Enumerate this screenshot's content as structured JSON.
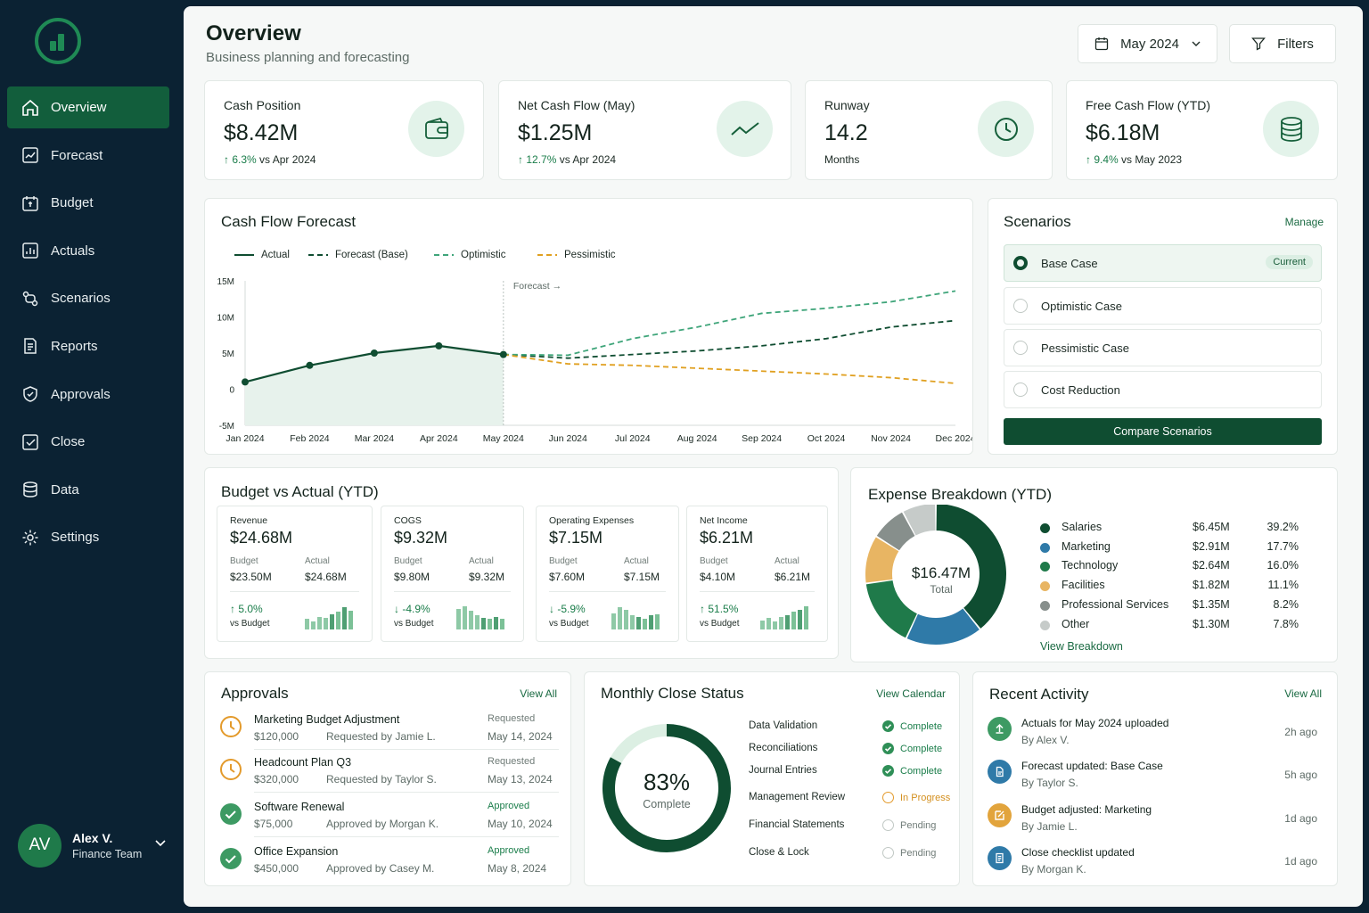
{
  "nav": {
    "items": [
      {
        "label": "Overview",
        "icon": "home-icon"
      },
      {
        "label": "Forecast",
        "icon": "forecast-icon"
      },
      {
        "label": "Budget",
        "icon": "budget-icon"
      },
      {
        "label": "Actuals",
        "icon": "actuals-icon"
      },
      {
        "label": "Scenarios",
        "icon": "scenarios-icon"
      },
      {
        "label": "Reports",
        "icon": "reports-icon"
      },
      {
        "label": "Approvals",
        "icon": "approvals-icon"
      },
      {
        "label": "Close",
        "icon": "close-check-icon"
      },
      {
        "label": "Data",
        "icon": "database-icon"
      },
      {
        "label": "Settings",
        "icon": "gear-icon"
      }
    ],
    "active": "Overview"
  },
  "user": {
    "initials": "AV",
    "name": "Alex V.",
    "team": "Finance Team"
  },
  "header": {
    "title": "Overview",
    "subtitle": "Business planning and forecasting",
    "period": "May 2024",
    "filters_label": "Filters"
  },
  "kpis": [
    {
      "label": "Cash Position",
      "value": "$8.42M",
      "delta": "6.3%",
      "delta_note": "vs Apr 2024",
      "icon": "wallet-icon"
    },
    {
      "label": "Net Cash Flow (May)",
      "value": "$1.25M",
      "delta": "12.7%",
      "delta_note": "vs Apr 2024",
      "icon": "trend-line-icon"
    },
    {
      "label": "Runway",
      "value": "14.2",
      "delta_note": "Months",
      "icon": "clock-icon"
    },
    {
      "label": "Free Cash Flow (YTD)",
      "value": "$6.18M",
      "delta": "9.4%",
      "delta_note": "vs May 2023",
      "icon": "coins-icon"
    }
  ],
  "cashflow": {
    "title": "Cash Flow Forecast",
    "forecast_marker": "Forecast",
    "legend": [
      "Actual",
      "Forecast (Base)",
      "Optimistic",
      "Pessimistic"
    ]
  },
  "chart_data": {
    "type": "line",
    "x": [
      "Jan 2024",
      "Feb 2024",
      "Mar 2024",
      "Apr 2024",
      "May 2024",
      "Jun 2024",
      "Jul 2024",
      "Aug 2024",
      "Sep 2024",
      "Oct 2024",
      "Nov 2024",
      "Dec 2024"
    ],
    "ylim": [
      -5,
      15
    ],
    "yticks": [
      "15M",
      "10M",
      "5M",
      "0",
      "-5M"
    ],
    "ytick_values": [
      15,
      10,
      5,
      0,
      -5
    ],
    "series": [
      {
        "name": "Actual",
        "color": "#0f4d31",
        "dash": "solid",
        "points": [
          [
            0,
            1.0
          ],
          [
            1,
            3.3
          ],
          [
            2,
            5.0
          ],
          [
            3,
            6.0
          ],
          [
            4,
            4.8
          ]
        ]
      },
      {
        "name": "Forecast (Base)",
        "color": "#0f4d31",
        "dash": "dashed",
        "points": [
          [
            4,
            4.8
          ],
          [
            5,
            4.3
          ],
          [
            6,
            4.8
          ],
          [
            7,
            5.3
          ],
          [
            8,
            6.0
          ],
          [
            9,
            7.0
          ],
          [
            10,
            8.6
          ],
          [
            11,
            9.5
          ]
        ]
      },
      {
        "name": "Optimistic",
        "color": "#3fa57a",
        "dash": "dashed",
        "points": [
          [
            4,
            4.8
          ],
          [
            5,
            4.7
          ],
          [
            6,
            7.0
          ],
          [
            7,
            8.6
          ],
          [
            8,
            10.5
          ],
          [
            9,
            11.2
          ],
          [
            10,
            12.1
          ],
          [
            11,
            13.6
          ]
        ]
      },
      {
        "name": "Pessimistic",
        "color": "#e0a020",
        "dash": "dashed",
        "points": [
          [
            4,
            4.8
          ],
          [
            5,
            3.5
          ],
          [
            6,
            3.3
          ],
          [
            7,
            2.9
          ],
          [
            8,
            2.5
          ],
          [
            9,
            2.1
          ],
          [
            10,
            1.6
          ],
          [
            11,
            0.8
          ]
        ]
      }
    ]
  },
  "scenarios": {
    "title": "Scenarios",
    "manage": "Manage",
    "items": [
      "Base Case",
      "Optimistic Case",
      "Pessimistic Case",
      "Cost Reduction"
    ],
    "current_badge": "Current",
    "compare": "Compare Scenarios"
  },
  "bva": {
    "title": "Budget vs Actual (YTD)",
    "budget_label": "Budget",
    "actual_label": "Actual",
    "vs_label": "vs Budget",
    "items": [
      {
        "name": "Revenue",
        "value": "$24.68M",
        "budget": "$23.50M",
        "actual": "$24.68M",
        "delta": "5.0%",
        "dir": "up",
        "bars": [
          0.45,
          0.35,
          0.55,
          0.5,
          0.65,
          0.75,
          0.95,
          0.8
        ]
      },
      {
        "name": "COGS",
        "value": "$9.32M",
        "budget": "$9.80M",
        "actual": "$9.32M",
        "delta": "-4.9%",
        "dir": "down",
        "bars": [
          0.9,
          1.0,
          0.8,
          0.6,
          0.5,
          0.45,
          0.55,
          0.45
        ]
      },
      {
        "name": "Operating Expenses",
        "value": "$7.15M",
        "budget": "$7.60M",
        "actual": "$7.15M",
        "delta": "-5.9%",
        "dir": "down",
        "bars": [
          0.7,
          0.95,
          0.85,
          0.6,
          0.55,
          0.45,
          0.6,
          0.65
        ]
      },
      {
        "name": "Net Income",
        "value": "$6.21M",
        "budget": "$4.10M",
        "actual": "$6.21M",
        "delta": "51.5%",
        "dir": "up",
        "bars": [
          0.4,
          0.5,
          0.35,
          0.55,
          0.6,
          0.75,
          0.85,
          1.0
        ]
      }
    ]
  },
  "expense": {
    "title": "Expense Breakdown (YTD)",
    "total_value": "$16.47M",
    "total_label": "Total",
    "view": "View Breakdown",
    "items": [
      {
        "name": "Salaries",
        "amount": "$6.45M",
        "pct": "39.2%",
        "value": 39.2,
        "color": "#0f4d31"
      },
      {
        "name": "Marketing",
        "amount": "$2.91M",
        "pct": "17.7%",
        "value": 17.7,
        "color": "#2f7aa8"
      },
      {
        "name": "Technology",
        "amount": "$2.64M",
        "pct": "16.0%",
        "value": 16.0,
        "color": "#1f7a4a"
      },
      {
        "name": "Facilities",
        "amount": "$1.82M",
        "pct": "11.1%",
        "value": 11.1,
        "color": "#e8b563"
      },
      {
        "name": "Professional Services",
        "amount": "$1.35M",
        "pct": "8.2%",
        "value": 8.2,
        "color": "#878f8c"
      },
      {
        "name": "Other",
        "amount": "$1.30M",
        "pct": "7.8%",
        "value": 7.8,
        "color": "#c6cbc9"
      }
    ]
  },
  "approvals": {
    "title": "Approvals",
    "view_all": "View All",
    "items": [
      {
        "title": "Marketing Budget Adjustment",
        "amount": "$120,000",
        "by": "Requested by Jamie L.",
        "status": "Requested",
        "date": "May 14, 2024",
        "state": "pending"
      },
      {
        "title": "Headcount Plan Q3",
        "amount": "$320,000",
        "by": "Requested by Taylor S.",
        "status": "Requested",
        "date": "May 13, 2024",
        "state": "pending"
      },
      {
        "title": "Software Renewal",
        "amount": "$75,000",
        "by": "Approved by Morgan K.",
        "status": "Approved",
        "date": "May 10, 2024",
        "state": "approved"
      },
      {
        "title": "Office Expansion",
        "amount": "$450,000",
        "by": "Approved by Casey M.",
        "status": "Approved",
        "date": "May 8, 2024",
        "state": "approved"
      }
    ]
  },
  "close": {
    "title": "Monthly Close Status",
    "view": "View Calendar",
    "percent": "83%",
    "percent_value": 83,
    "complete_label": "Complete",
    "items": [
      {
        "name": "Data Validation",
        "status": "Complete",
        "state": "done"
      },
      {
        "name": "Reconciliations",
        "status": "Complete",
        "state": "done"
      },
      {
        "name": "Journal Entries",
        "status": "Complete",
        "state": "done"
      },
      {
        "name": "Management Review",
        "status": "In Progress",
        "state": "progress"
      },
      {
        "name": "Financial Statements",
        "status": "Pending",
        "state": "pending"
      },
      {
        "name": "Close & Lock",
        "status": "Pending",
        "state": "pending"
      }
    ]
  },
  "activity": {
    "title": "Recent Activity",
    "view_all": "View All",
    "items": [
      {
        "title": "Actuals for May 2024 uploaded",
        "by": "By Alex V.",
        "time": "2h ago",
        "icon": "upload-icon",
        "color": "#3d9a63"
      },
      {
        "title": "Forecast updated: Base Case",
        "by": "By Taylor S.",
        "time": "5h ago",
        "icon": "document-icon",
        "color": "#2f7aa8"
      },
      {
        "title": "Budget adjusted: Marketing",
        "by": "By Jamie L.",
        "time": "1d ago",
        "icon": "edit-icon",
        "color": "#e2a43c"
      },
      {
        "title": "Close checklist updated",
        "by": "By Morgan K.",
        "time": "1d ago",
        "icon": "checklist-icon",
        "color": "#2f7aa8"
      }
    ]
  }
}
